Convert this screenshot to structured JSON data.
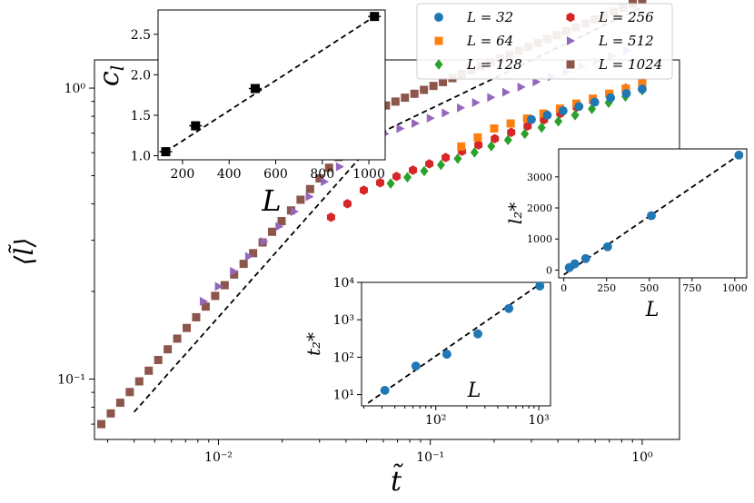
{
  "colors": {
    "L32": "#1f77b4",
    "L64": "#ff7f0e",
    "L128": "#2ca02c",
    "L256": "#d62728",
    "L512": "#9467bd",
    "L1024": "#8c564b",
    "fit": "#000000"
  },
  "chart_data": [
    {
      "id": "main",
      "type": "scatter",
      "xscale": "log",
      "yscale": "log",
      "xlabel": "t̃",
      "ylabel": "⟨l̃⟩",
      "xlim": [
        0.0026,
        1.5
      ],
      "ylim": [
        0.062,
        1.25
      ],
      "xticks": [
        {
          "value": 0.01,
          "label": "10⁻²"
        },
        {
          "value": 0.1,
          "label": "10⁻¹"
        },
        {
          "value": 1,
          "label": "10⁰"
        }
      ],
      "yticks": [
        {
          "value": 0.1,
          "label": "10⁻¹"
        },
        {
          "value": 1,
          "label": "10⁰"
        }
      ],
      "legend": {
        "position": "top-right",
        "entries": [
          {
            "label": "L = 32",
            "marker": "circle",
            "color_key": "L32"
          },
          {
            "label": "L = 256",
            "marker": "hexagon",
            "color_key": "L256"
          },
          {
            "label": "L = 64",
            "marker": "square",
            "color_key": "L64"
          },
          {
            "label": "L = 512",
            "marker": "triangle-right",
            "color_key": "L512"
          },
          {
            "label": "L = 128",
            "marker": "diamond",
            "color_key": "L128"
          },
          {
            "label": "L = 1024",
            "marker": "square",
            "color_key": "L1024"
          }
        ]
      },
      "series": [
        {
          "name": "L = 1024",
          "marker": "square",
          "color_key": "L1024",
          "x_range": [
            0.0028,
            1.0
          ],
          "count": 58,
          "y_at_xmin": 0.07,
          "knee": 0.06,
          "slope_small": 0.82,
          "slope_large": 0.3
        },
        {
          "name": "L = 512",
          "marker": "triangle-right",
          "color_key": "L512",
          "x_range": [
            0.0085,
            1.0
          ],
          "count": 30,
          "y_at_xmin": 0.185,
          "knee": 0.05,
          "slope_small": 0.72,
          "slope_large": 0.25
        },
        {
          "name": "L = 256",
          "marker": "hexagon",
          "color_key": "L256",
          "x_range": [
            0.034,
            1.0
          ],
          "count": 20,
          "y_at_xmin": 0.36,
          "knee": 0.05,
          "slope_small": 0.6,
          "slope_large": 0.28
        },
        {
          "name": "L = 128",
          "marker": "diamond",
          "color_key": "L128",
          "x_range": [
            0.065,
            1.0
          ],
          "count": 16,
          "y_at_xmin": 0.47,
          "knee": 0.06,
          "slope_small": 0.55,
          "slope_large": 0.27
        },
        {
          "name": "L = 64",
          "marker": "square",
          "color_key": "L64",
          "x_range": [
            0.14,
            1.0
          ],
          "count": 12,
          "y_at_xmin": 0.63,
          "knee": 0.2,
          "slope_small": 0.4,
          "slope_large": 0.22
        },
        {
          "name": "L = 32",
          "marker": "circle",
          "color_key": "L32",
          "x_range": [
            0.3,
            1.0
          ],
          "count": 8,
          "y_at_xmin": 0.78,
          "knee": 0.3,
          "slope_small": 0.3,
          "slope_large": 0.2
        }
      ],
      "fit_line": {
        "x": [
          0.004,
          1.0
        ],
        "y_start": 0.077,
        "knee": 0.06,
        "slope_small": 0.82,
        "slope_large": 0.35,
        "y_end": 0.85
      }
    },
    {
      "id": "inset-cl",
      "type": "scatter",
      "xlabel": "L",
      "ylabel": "c_l",
      "xlim": [
        95,
        1070
      ],
      "ylim": [
        0.95,
        2.8
      ],
      "xticks": [
        200,
        400,
        600,
        800,
        1000
      ],
      "yticks": [
        1.0,
        1.5,
        2.0,
        2.5
      ],
      "x": [
        128,
        256,
        512,
        1024
      ],
      "y": [
        1.05,
        1.37,
        1.83,
        2.72
      ],
      "fit": {
        "x": [
          128,
          1024
        ],
        "y": [
          1.05,
          2.72
        ]
      }
    },
    {
      "id": "inset-t2",
      "type": "scatter",
      "xscale": "log",
      "yscale": "log",
      "xlabel": "L",
      "ylabel": "t₂*",
      "xlim": [
        19,
        1300
      ],
      "ylim": [
        5,
        10000
      ],
      "xticks": [
        {
          "value": 100,
          "label": "10²"
        },
        {
          "value": 1000,
          "label": "10³"
        }
      ],
      "yticks": [
        {
          "value": 10,
          "label": "10¹"
        },
        {
          "value": 100,
          "label": "10²"
        },
        {
          "value": 1000,
          "label": "10³"
        },
        {
          "value": 10000,
          "label": "10⁴"
        }
      ],
      "x": [
        32,
        64,
        128,
        256,
        512,
        1024
      ],
      "y": [
        13,
        58,
        120,
        420,
        2000,
        8000
      ],
      "fit": {
        "x": [
          22,
          1024
        ],
        "y": [
          6,
          9000
        ]
      }
    },
    {
      "id": "inset-l2",
      "type": "scatter",
      "xlabel": "L",
      "ylabel": "l₂*",
      "xlim": [
        -30,
        1070
      ],
      "ylim": [
        -250,
        3900
      ],
      "xticks": [
        0,
        250,
        500,
        750,
        1000
      ],
      "yticks": [
        0,
        1000,
        2000,
        3000
      ],
      "x": [
        32,
        64,
        128,
        256,
        512,
        1024
      ],
      "y": [
        80,
        200,
        370,
        750,
        1750,
        3700
      ],
      "fit": {
        "x": [
          0,
          1024
        ],
        "y": [
          -150,
          3700
        ]
      }
    }
  ]
}
